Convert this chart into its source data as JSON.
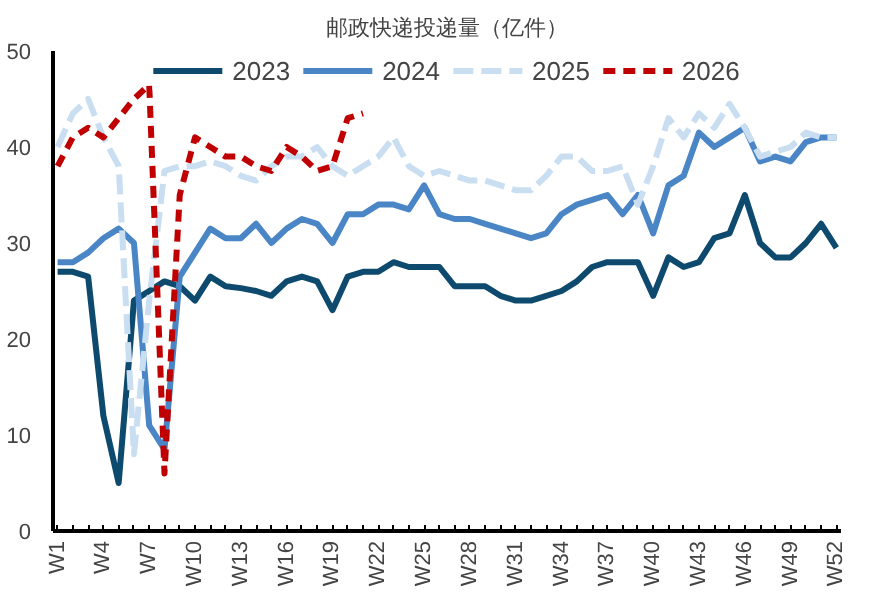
{
  "chart_data": {
    "type": "line",
    "title": "邮政快递投递量（亿件）",
    "categories": [
      "W1",
      null,
      null,
      "W4",
      null,
      null,
      "W7",
      null,
      null,
      "W10",
      null,
      null,
      "W13",
      null,
      null,
      "W16",
      null,
      null,
      "W19",
      null,
      null,
      "W22",
      null,
      null,
      "W25",
      null,
      null,
      "W28",
      null,
      null,
      "W31",
      null,
      null,
      "W34",
      null,
      null,
      "W37",
      null,
      null,
      "W40",
      null,
      null,
      "W43",
      null,
      null,
      "W46",
      null,
      null,
      "W49",
      null,
      null,
      "W52"
    ],
    "series": [
      {
        "name": "2023",
        "color": "#0d4a6e",
        "line_style": "solid",
        "values": [
          27,
          27,
          26.5,
          12,
          5,
          24,
          25,
          26,
          25.5,
          24,
          26.5,
          25.5,
          25.3,
          25,
          24.5,
          26,
          26.5,
          26,
          23,
          26.5,
          27,
          27,
          28,
          27.5,
          27.5,
          27.5,
          25.5,
          25.5,
          25.5,
          24.5,
          24,
          24,
          24.5,
          25,
          26,
          27.5,
          28,
          28,
          28,
          24.5,
          28.5,
          27.5,
          28,
          30.5,
          31,
          35,
          30,
          28.5,
          28.5,
          30,
          32,
          29.5
        ]
      },
      {
        "name": "2024",
        "color": "#4a86c5",
        "line_style": "solid",
        "values": [
          28,
          28,
          29,
          30.5,
          31.5,
          30,
          11,
          8.5,
          26.5,
          29,
          31.5,
          30.5,
          30.5,
          32,
          30,
          31.5,
          32.5,
          32,
          30,
          33,
          33,
          34,
          34,
          33.5,
          36,
          33,
          32.5,
          32.5,
          32,
          31.5,
          31,
          30.5,
          31,
          33,
          34,
          34.5,
          35,
          33,
          35,
          31,
          36,
          37,
          41.5,
          40,
          41,
          42,
          38.5,
          39,
          38.5,
          40.5,
          41,
          41
        ]
      },
      {
        "name": "2025",
        "color": "#c9def0",
        "line_style": "dashed",
        "values": [
          40,
          43.5,
          45,
          41,
          38,
          8,
          24,
          37.5,
          38,
          38,
          38.5,
          38,
          37,
          36.5,
          38,
          39,
          39,
          40,
          38,
          37,
          38,
          39,
          41,
          38,
          37,
          37.5,
          37,
          36.5,
          36.5,
          36,
          35.5,
          35.5,
          37,
          39,
          39,
          37.5,
          37.5,
          38,
          34,
          38,
          43,
          41,
          43.5,
          42,
          44.5,
          42,
          39,
          39.5,
          40,
          41.5,
          41,
          41
        ]
      },
      {
        "name": "2026",
        "color": "#c00000",
        "line_style": "dotted",
        "values": [
          38,
          41,
          42,
          41,
          43,
          45,
          46.5,
          6,
          35,
          41,
          40,
          39,
          39,
          38,
          37.5,
          40,
          39,
          37.5,
          38,
          43,
          43.5,
          null,
          null,
          null,
          null,
          null,
          null,
          null,
          null,
          null,
          null,
          null,
          null,
          null,
          null,
          null,
          null,
          null,
          null,
          null,
          null,
          null,
          null,
          null,
          null,
          null,
          null,
          null,
          null,
          null,
          null,
          null
        ]
      }
    ],
    "ylim": [
      0,
      50
    ],
    "yticks": [
      0,
      10,
      20,
      30,
      40,
      50
    ],
    "grid": false,
    "legend": "top",
    "marker": "none"
  }
}
